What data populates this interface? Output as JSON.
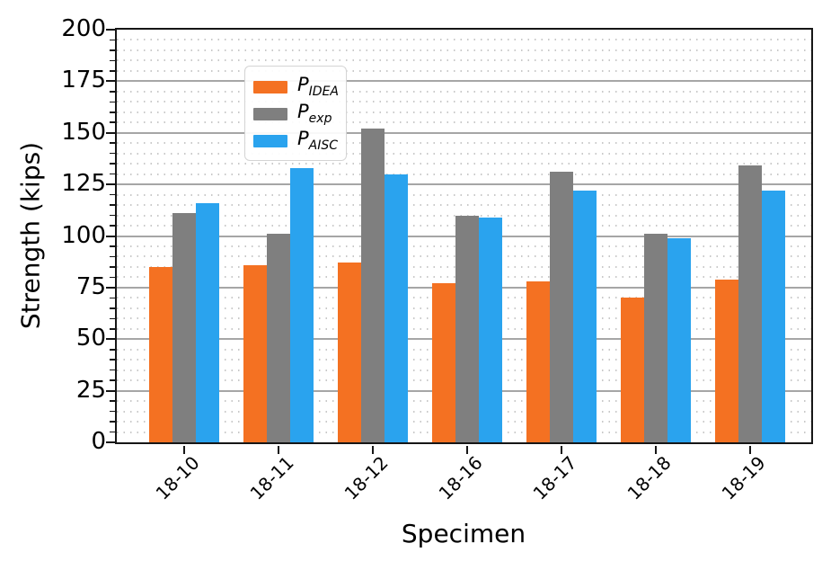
{
  "chart_data": {
    "type": "bar",
    "title": "",
    "xlabel": "Specimen",
    "ylabel": "Strength (kips)",
    "ylim": [
      0,
      200
    ],
    "ytick_step": 25,
    "yminor_step": 5,
    "yticks": [
      0,
      25,
      50,
      75,
      100,
      125,
      150,
      175,
      200
    ],
    "grid": {
      "major_solid": true,
      "minor_dotted": true
    },
    "legend_position": "upper left",
    "categories": [
      "18-10",
      "18-11",
      "18-12",
      "18-16",
      "18-17",
      "18-18",
      "18-19"
    ],
    "series": [
      {
        "name": "P_IDEA",
        "label_main": "P",
        "label_sub": "IDEA",
        "color": "#f47122",
        "values": [
          85,
          86,
          87,
          77,
          78,
          70,
          79
        ]
      },
      {
        "name": "P_exp",
        "label_main": "P",
        "label_sub": "exp",
        "color": "#7f7f7f",
        "values": [
          111,
          101,
          152,
          110,
          131,
          101,
          134
        ]
      },
      {
        "name": "P_AISC",
        "label_main": "P",
        "label_sub": "AISC",
        "color": "#2aa3ee",
        "values": [
          116,
          133,
          130,
          109,
          122,
          99,
          122
        ]
      }
    ]
  },
  "colors": {
    "spine": "#161616",
    "grid_major": "#a6a6a6",
    "grid_minor_dot": "#c9c9c9",
    "background": "#ffffff"
  }
}
